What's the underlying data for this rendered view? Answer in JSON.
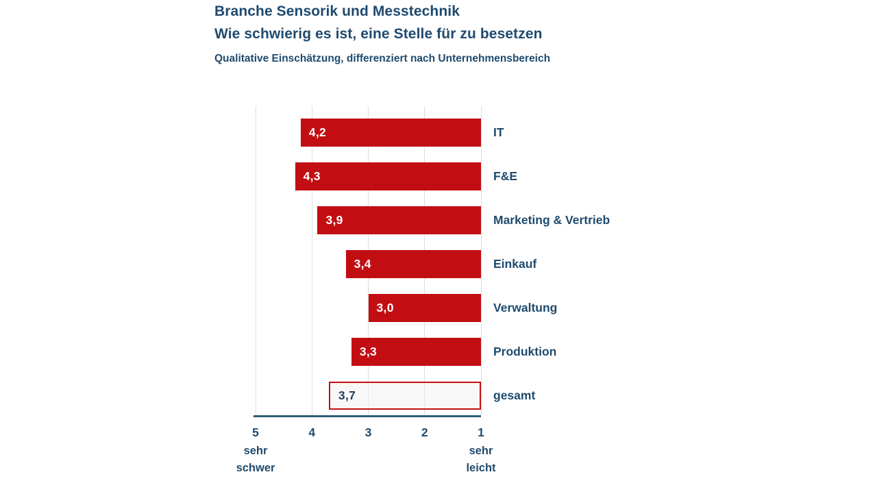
{
  "header": {
    "title_line1": "Branche Sensorik und Messtechnik",
    "title_line2": "Wie schwierig es ist, eine Stelle für zu besetzen",
    "subtitle": "Qualitative Einschätzung, differenziert nach Unternehmensbereich"
  },
  "chart_data": {
    "type": "bar",
    "orientation": "horizontal",
    "title": "Branche Sensorik und Messtechnik",
    "subtitle_line": "Wie schwierig es ist, eine Stelle für zu besetzen",
    "note": "Qualitative Einschätzung, differenziert nach Unternehmensbereich",
    "categories": [
      "IT",
      "F&E",
      "Marketing & Vertrieb",
      "Einkauf",
      "Verwaltung",
      "Produktion",
      "gesamt"
    ],
    "values": [
      4.2,
      4.3,
      3.9,
      3.4,
      3.0,
      3.3,
      3.7
    ],
    "value_labels": [
      "4,2",
      "4,3",
      "3,9",
      "3,4",
      "3,0",
      "3,3",
      "3,7"
    ],
    "highlight_category": "gesamt",
    "grid": true,
    "legend": false,
    "x_axis": {
      "range": [
        1,
        5
      ],
      "reversed": true,
      "ticks": [
        "5",
        "4",
        "3",
        "2",
        "1"
      ],
      "tick_values": [
        5,
        4,
        3,
        2,
        1
      ],
      "left_caption": [
        "sehr",
        "schwer"
      ],
      "right_caption": [
        "sehr",
        "leicht"
      ]
    },
    "colors": {
      "bar_fill": "#c20e13",
      "highlight_fill": "rgba(242,242,242,0.55)",
      "highlight_border": "#c20e13",
      "value_label_on_bar": "#ffffff",
      "value_label_highlight": "#1e3f63",
      "category_label": "#1f4a6e",
      "title_text": "#1f4a6e",
      "axis_line": "#2f5d77",
      "gridline": "#dcdcdc"
    }
  }
}
